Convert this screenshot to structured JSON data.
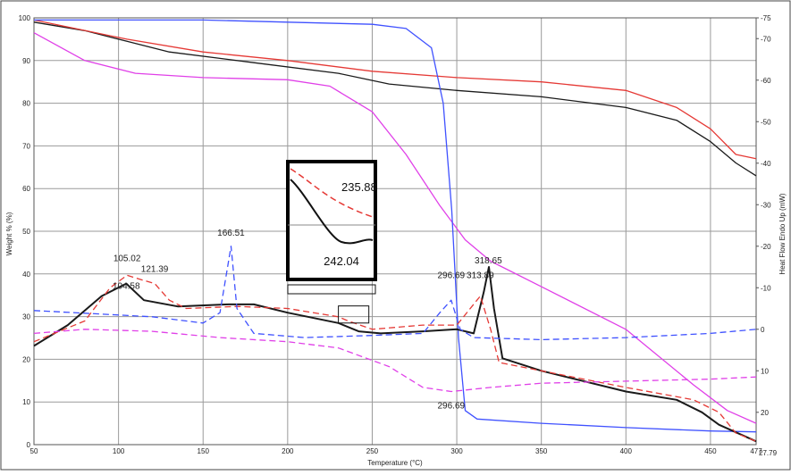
{
  "chart_data": {
    "type": "line",
    "xlabel": "Temperature (°C)",
    "ylabel": "Weight % (%)",
    "y2label": "Heat Flow Endo Up (mW)",
    "xlim": [
      50,
      477
    ],
    "ylim": [
      0,
      100
    ],
    "y2lim": [
      27.79,
      -75
    ],
    "x_ticks": [
      50,
      100,
      150,
      200,
      250,
      300,
      350,
      400,
      450
    ],
    "x_end_label": "477",
    "y_ticks": [
      0,
      10,
      20,
      30,
      40,
      50,
      60,
      70,
      80,
      90,
      100
    ],
    "y2_ticks": [
      -75,
      -70,
      -60,
      -50,
      -40,
      -30,
      -20,
      -10,
      0,
      10,
      20
    ],
    "y2_end_label": "27.79",
    "grid": true,
    "series": [
      {
        "color": "#1a1a1a",
        "style": "solid",
        "axis": "y",
        "points": [
          [
            50,
            99
          ],
          [
            80,
            97
          ],
          [
            105,
            94.5
          ],
          [
            130,
            92
          ],
          [
            180,
            89.5
          ],
          [
            230,
            87
          ],
          [
            260,
            84.5
          ],
          [
            300,
            83
          ],
          [
            350,
            81.5
          ],
          [
            400,
            79
          ],
          [
            430,
            76
          ],
          [
            450,
            71
          ],
          [
            465,
            66
          ],
          [
            477,
            63
          ]
        ]
      },
      {
        "color": "#e53935",
        "style": "solid",
        "axis": "y",
        "points": [
          [
            50,
            99.5
          ],
          [
            105,
            95
          ],
          [
            150,
            92
          ],
          [
            200,
            90
          ],
          [
            250,
            87.5
          ],
          [
            300,
            86
          ],
          [
            350,
            85
          ],
          [
            400,
            83
          ],
          [
            430,
            79
          ],
          [
            450,
            74
          ],
          [
            465,
            68
          ],
          [
            477,
            67
          ]
        ]
      },
      {
        "color": "#e040e8",
        "style": "solid",
        "axis": "y",
        "points": [
          [
            50,
            96.5
          ],
          [
            80,
            90
          ],
          [
            110,
            87
          ],
          [
            150,
            86
          ],
          [
            200,
            85.5
          ],
          [
            225,
            84
          ],
          [
            250,
            78
          ],
          [
            270,
            68
          ],
          [
            290,
            56
          ],
          [
            305,
            48
          ],
          [
            320,
            43
          ],
          [
            350,
            37
          ],
          [
            400,
            27
          ],
          [
            440,
            14
          ],
          [
            460,
            8
          ],
          [
            477,
            5
          ]
        ]
      },
      {
        "color": "#3f51ff",
        "style": "solid",
        "axis": "y",
        "points": [
          [
            50,
            99.5
          ],
          [
            150,
            99.5
          ],
          [
            200,
            99
          ],
          [
            250,
            98.5
          ],
          [
            270,
            97.5
          ],
          [
            285,
            93
          ],
          [
            292,
            80
          ],
          [
            297,
            55
          ],
          [
            301,
            25
          ],
          [
            305,
            8
          ],
          [
            312,
            6
          ],
          [
            350,
            5
          ],
          [
            400,
            4
          ],
          [
            450,
            3.2
          ],
          [
            477,
            3
          ]
        ]
      },
      {
        "color": "#1a1a1a",
        "style": "solid",
        "axis": "y2",
        "points": [
          [
            50,
            4
          ],
          [
            70,
            -1
          ],
          [
            90,
            -8
          ],
          [
            104.58,
            -11
          ],
          [
            115,
            -7
          ],
          [
            135,
            -5.5
          ],
          [
            165,
            -6
          ],
          [
            180,
            -6
          ],
          [
            200,
            -4
          ],
          [
            230,
            -1.5
          ],
          [
            242,
            0.5
          ],
          [
            255,
            1
          ],
          [
            280,
            0.5
          ],
          [
            300,
            0
          ],
          [
            310,
            1
          ],
          [
            316,
            -9
          ],
          [
            319,
            -15
          ],
          [
            322,
            -5
          ],
          [
            327,
            7
          ],
          [
            350,
            10
          ],
          [
            400,
            15
          ],
          [
            430,
            17
          ],
          [
            445,
            20
          ],
          [
            455,
            23
          ],
          [
            477,
            27
          ]
        ]
      },
      {
        "color": "#e53935",
        "style": "dashed",
        "axis": "y2",
        "points": [
          [
            50,
            3
          ],
          [
            80,
            -2
          ],
          [
            95,
            -10
          ],
          [
            105.02,
            -13
          ],
          [
            113,
            -12
          ],
          [
            121.39,
            -11
          ],
          [
            130,
            -7
          ],
          [
            140,
            -5
          ],
          [
            170,
            -5.5
          ],
          [
            200,
            -5
          ],
          [
            230,
            -3
          ],
          [
            235.88,
            -2
          ],
          [
            250,
            0
          ],
          [
            280,
            -1
          ],
          [
            300,
            -1
          ],
          [
            313.89,
            -8
          ],
          [
            320,
            0
          ],
          [
            325,
            8
          ],
          [
            350,
            10
          ],
          [
            400,
            14
          ],
          [
            440,
            17
          ],
          [
            455,
            20
          ],
          [
            465,
            25
          ],
          [
            477,
            27
          ]
        ]
      },
      {
        "color": "#3f51ff",
        "style": "dashed",
        "axis": "y2",
        "points": [
          [
            50,
            -4.5
          ],
          [
            120,
            -3
          ],
          [
            150,
            -1.5
          ],
          [
            160,
            -4
          ],
          [
            166.51,
            -20
          ],
          [
            170,
            -5
          ],
          [
            180,
            1
          ],
          [
            210,
            2
          ],
          [
            250,
            1.5
          ],
          [
            280,
            1
          ],
          [
            290,
            -4
          ],
          [
            296.69,
            -7
          ],
          [
            302,
            0
          ],
          [
            310,
            2
          ],
          [
            350,
            2.5
          ],
          [
            400,
            2
          ],
          [
            450,
            1
          ],
          [
            477,
            0
          ]
        ]
      },
      {
        "color": "#e040e8",
        "style": "dashed",
        "axis": "y2",
        "points": [
          [
            50,
            1
          ],
          [
            80,
            0
          ],
          [
            120,
            0.5
          ],
          [
            160,
            2
          ],
          [
            200,
            3
          ],
          [
            230,
            4.5
          ],
          [
            260,
            9
          ],
          [
            280,
            14
          ],
          [
            296.69,
            15
          ],
          [
            320,
            14
          ],
          [
            350,
            13
          ],
          [
            400,
            12.5
          ],
          [
            450,
            12
          ],
          [
            477,
            11.5
          ]
        ]
      }
    ],
    "annotations": [
      {
        "text": "105.02",
        "x": 105.02,
        "y": 43
      },
      {
        "text": "104.58",
        "x": 104.58,
        "y": 36.5
      },
      {
        "text": "121.39",
        "x": 121.39,
        "y": 40.5
      },
      {
        "text": "166.51",
        "x": 166.51,
        "y": 49
      },
      {
        "text": "296.69",
        "x": 296.69,
        "y": 39
      },
      {
        "text": "313.89",
        "x": 313.89,
        "y": 39
      },
      {
        "text": "318.65",
        "x": 318.65,
        "y": 42.5
      },
      {
        "text": "296.69",
        "x": 296.69,
        "y": 8.5
      }
    ],
    "inset": {
      "labels": [
        "235.88",
        "242.04"
      ],
      "zoom_x": [
        230,
        248
      ],
      "zoom_y": [
        28.5,
        32.5
      ]
    }
  }
}
